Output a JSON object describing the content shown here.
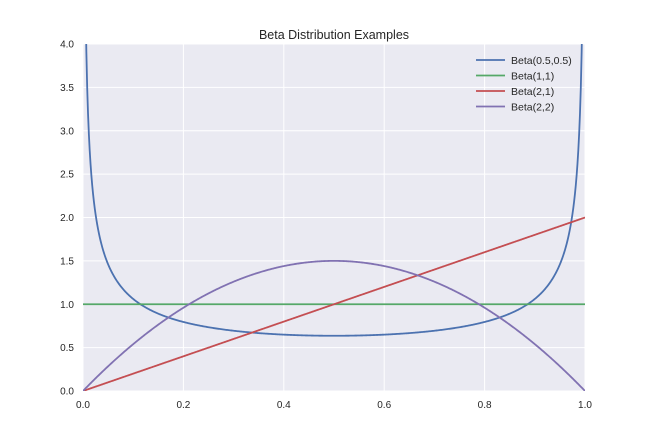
{
  "chart_data": {
    "type": "line",
    "title": "Beta Distribution Examples",
    "xlabel": "",
    "ylabel": "",
    "xlim": [
      0.0,
      1.0
    ],
    "ylim": [
      0.0,
      4.0
    ],
    "x_ticks": [
      "0.0",
      "0.2",
      "0.4",
      "0.6",
      "0.8",
      "1.0"
    ],
    "y_ticks": [
      "0.0",
      "0.5",
      "1.0",
      "1.5",
      "2.0",
      "2.5",
      "3.0",
      "3.5",
      "4.0"
    ],
    "grid": true,
    "legend_position": "top-right",
    "background": "#eaeaf2",
    "series": [
      {
        "name": "Beta(0.5,0.5)",
        "color": "#4c72b0",
        "alpha": 0.5,
        "beta": 0.5
      },
      {
        "name": "Beta(1,1)",
        "color": "#55a868",
        "alpha": 1,
        "beta": 1
      },
      {
        "name": "Beta(2,1)",
        "color": "#c44e52",
        "alpha": 2,
        "beta": 1
      },
      {
        "name": "Beta(2,2)",
        "color": "#8172b2",
        "alpha": 2,
        "beta": 2
      }
    ]
  }
}
